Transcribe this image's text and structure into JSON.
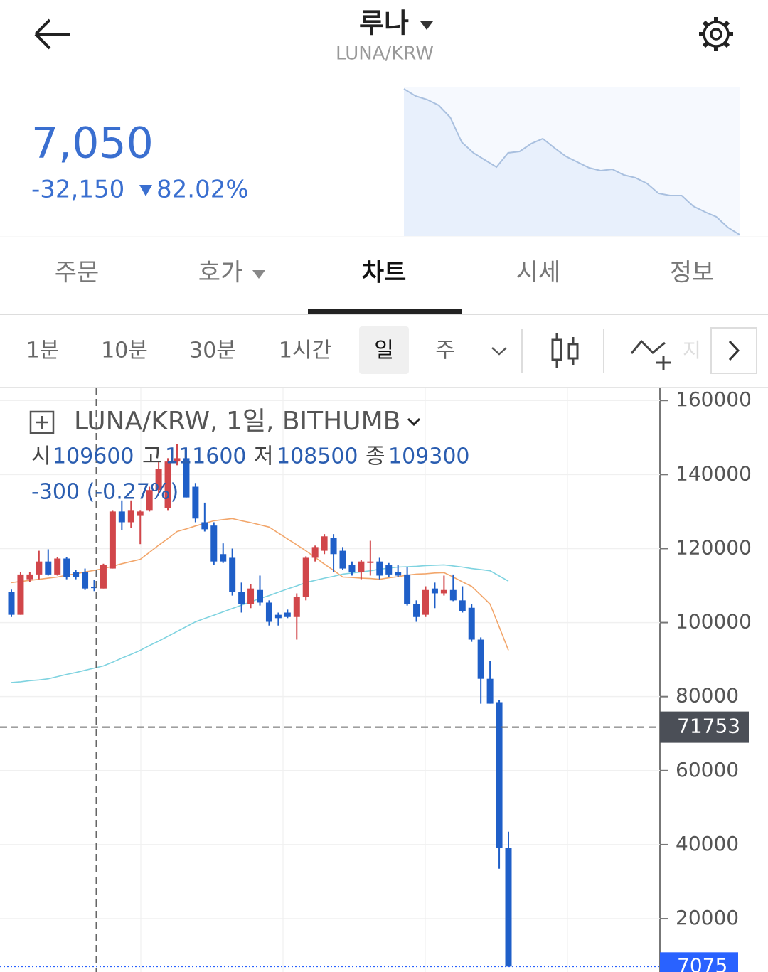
{
  "header": {
    "title": "루나",
    "pair": "LUNA/KRW"
  },
  "price": {
    "last": "7,050",
    "change": "-32,150",
    "change_pct": "82.02%"
  },
  "sparkline": {
    "values": [
      39200,
      37630,
      36850,
      35590,
      32930,
      27440,
      25090,
      23520,
      21950,
      25090,
      25400,
      27120,
      28220,
      26180,
      24300,
      23050,
      21790,
      21160,
      21480,
      20220,
      19600,
      18340,
      16150,
      15680,
      15680,
      13320,
      12070,
      10970,
      8620,
      7050
    ],
    "color": "#a9c0df"
  },
  "tabs": {
    "items": [
      "주문",
      "호가",
      "차트",
      "시세",
      "정보"
    ],
    "active": 2
  },
  "intervals": {
    "items": [
      "1분",
      "10분",
      "30분",
      "1시간",
      "일",
      "주"
    ],
    "active": 4
  },
  "toolbar": {
    "cut_label": "지"
  },
  "chart_data": {
    "type": "candlestick",
    "title": "LUNA/KRW, 1일, BITHUMB",
    "ohlc_labels": [
      "시",
      "고",
      "저",
      "종"
    ],
    "crosshair": {
      "open": 109600,
      "high": 111600,
      "low": 108500,
      "close": 109300,
      "change": "-300 (-0.27%)",
      "price": 71753
    },
    "last_price": 7075,
    "up_color": "#d1464a",
    "down_color": "#1f5fc8",
    "ylim": [
      5600,
      163500
    ],
    "yticks": [
      160000,
      140000,
      120000,
      100000,
      80000,
      60000,
      40000,
      20000
    ],
    "grid": true,
    "open": [
      108300,
      102100,
      111700,
      113000,
      116500,
      113000,
      117300,
      113600,
      113600,
      109600,
      109200,
      114600,
      130000,
      127100,
      129000,
      130400,
      135800,
      131000,
      143500,
      144400,
      136700,
      127100,
      126200,
      118500,
      117500,
      108300,
      105000,
      108800,
      105400,
      102100,
      102700,
      101500,
      106900,
      117500,
      119400,
      122900,
      119400,
      115500,
      113600,
      116100,
      116500,
      115500,
      113600,
      113000,
      105000,
      102100,
      109200,
      107900,
      108800,
      106000,
      104000,
      95400,
      84800,
      78500,
      39200
    ],
    "high": [
      108900,
      113600,
      113600,
      119400,
      119800,
      117700,
      117700,
      114200,
      114600,
      111600,
      115900,
      130400,
      133000,
      133000,
      130400,
      136700,
      143500,
      144400,
      148200,
      147300,
      137700,
      132400,
      127100,
      121400,
      120000,
      110800,
      110400,
      112700,
      106000,
      102700,
      103500,
      107900,
      117900,
      120800,
      123900,
      123900,
      120400,
      116500,
      116900,
      122100,
      117500,
      116100,
      115500,
      115000,
      106000,
      109800,
      110800,
      112700,
      113000,
      109800,
      105000,
      96000,
      89600,
      79100,
      43500
    ],
    "low": [
      101500,
      102100,
      111000,
      111700,
      112700,
      112700,
      111700,
      111700,
      108800,
      108500,
      109200,
      114600,
      124900,
      125600,
      121200,
      130000,
      135000,
      130400,
      142500,
      133800,
      127100,
      124600,
      115500,
      116100,
      107300,
      102700,
      103900,
      104600,
      99200,
      99200,
      101200,
      95400,
      106000,
      116500,
      118500,
      113600,
      114200,
      112700,
      111700,
      112700,
      111700,
      112300,
      112300,
      104600,
      100200,
      101500,
      103900,
      107300,
      105800,
      102700,
      94800,
      78100,
      78100,
      33500,
      7075
    ],
    "close": [
      102100,
      113000,
      113000,
      116500,
      113000,
      117300,
      112300,
      112300,
      109200,
      109300,
      115500,
      130000,
      127100,
      130400,
      130000,
      135800,
      141500,
      143500,
      144400,
      133800,
      128100,
      125200,
      116500,
      116500,
      108300,
      105000,
      109200,
      105400,
      100200,
      101200,
      101500,
      106900,
      117500,
      120400,
      123300,
      118500,
      114600,
      113600,
      116500,
      116500,
      112700,
      113000,
      112700,
      105000,
      101500,
      108800,
      107900,
      108800,
      106000,
      103100,
      95400,
      84800,
      78100,
      39200,
      7075
    ],
    "ma": [
      {
        "color": "#f2a66b",
        "values": [
          110800,
          111100,
          111400,
          111700,
          112000,
          112300,
          112800,
          113200,
          113700,
          114100,
          114600,
          115200,
          115900,
          116500,
          117100,
          119000,
          120900,
          122700,
          124600,
          125300,
          126100,
          126800,
          127500,
          127800,
          128100,
          127500,
          127000,
          126400,
          125800,
          124200,
          122600,
          121000,
          119400,
          117600,
          115800,
          114100,
          112300,
          112200,
          112000,
          111900,
          111700,
          112100,
          112400,
          112800,
          113100,
          113200,
          113400,
          113500,
          112300,
          111000,
          109800,
          107400,
          105000,
          98800,
          92500
        ]
      },
      {
        "color": "#7fd3e0",
        "values": [
          83800,
          84000,
          84300,
          84500,
          84800,
          85400,
          86000,
          86500,
          87100,
          87700,
          88300,
          89300,
          90400,
          91400,
          92500,
          93800,
          95000,
          96300,
          97600,
          98900,
          100200,
          101100,
          102000,
          102900,
          103800,
          104700,
          105600,
          106500,
          107300,
          108200,
          109100,
          109900,
          110800,
          111400,
          112000,
          112500,
          113100,
          113400,
          113700,
          114000,
          114400,
          114700,
          115000,
          115100,
          115200,
          115400,
          115500,
          115600,
          115300,
          115000,
          114600,
          114300,
          114000,
          112600,
          111200
        ]
      }
    ]
  }
}
